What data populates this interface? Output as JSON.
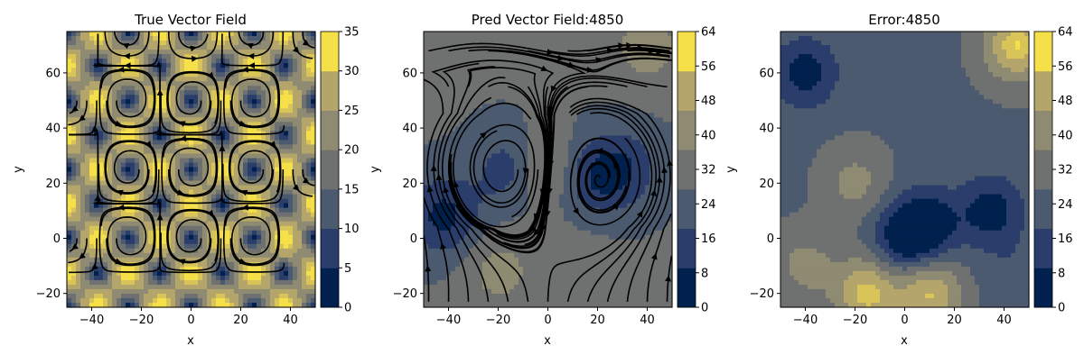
{
  "chart_data": [
    {
      "type": "heatmap",
      "title": "True Vector Field",
      "xlabel": "x",
      "ylabel": "y",
      "xlim": [
        -50,
        50
      ],
      "ylim": [
        -25,
        75
      ],
      "xticks": [
        -40,
        -20,
        0,
        20,
        40
      ],
      "yticks": [
        -20,
        0,
        20,
        40,
        60
      ],
      "colorbar": {
        "min": 0,
        "max": 35,
        "ticks": [
          0,
          5,
          10,
          15,
          20,
          25,
          30,
          35
        ]
      },
      "overlay": "streamlines",
      "field": "|(cos(kx)·sin(ky), −sin(kx)·cos(ky))| · 35, period 50 in x and y",
      "cell_centers": [
        {
          "x": -25,
          "y": 25,
          "value": 2
        },
        {
          "x": 25,
          "y": 25,
          "value": 2
        },
        {
          "x": -25,
          "y": -25,
          "value": 2
        },
        {
          "x": 25,
          "y": -25,
          "value": 2
        },
        {
          "x": -25,
          "y": 75,
          "value": 2
        },
        {
          "x": 25,
          "y": 75,
          "value": 2
        },
        {
          "x": 0,
          "y": 0,
          "value": 2
        },
        {
          "x": 0,
          "y": 50,
          "value": 2
        },
        {
          "x": -50,
          "y": 0,
          "value": 2
        },
        {
          "x": 50,
          "y": 50,
          "value": 2
        }
      ]
    },
    {
      "type": "heatmap",
      "title": "Pred Vector Field:4850",
      "xlabel": "x",
      "ylabel": "y",
      "xlim": [
        -50,
        50
      ],
      "ylim": [
        -25,
        75
      ],
      "xticks": [
        -40,
        -20,
        0,
        20,
        40
      ],
      "yticks": [
        -20,
        0,
        20,
        40,
        60
      ],
      "colorbar": {
        "min": 0,
        "max": 64,
        "ticks": [
          0,
          8,
          16,
          24,
          32,
          40,
          48,
          56,
          64
        ]
      },
      "overlay": "streamlines",
      "regions": [
        {
          "x": -15,
          "y": 25,
          "value": 12
        },
        {
          "x": 15,
          "y": 22,
          "value": 12
        },
        {
          "x": 30,
          "y": 25,
          "value": 10
        },
        {
          "x": -42,
          "y": 8,
          "value": 6
        },
        {
          "x": 0,
          "y": 25,
          "value": 45
        },
        {
          "x": -20,
          "y": -12,
          "value": 40
        },
        {
          "x": 10,
          "y": -12,
          "value": 35
        },
        {
          "x": 40,
          "y": 70,
          "value": 42
        }
      ]
    },
    {
      "type": "heatmap",
      "title": "Error:4850",
      "xlabel": "x",
      "ylabel": "y",
      "xlim": [
        -50,
        50
      ],
      "ylim": [
        -25,
        75
      ],
      "xticks": [
        -40,
        -20,
        0,
        20,
        40
      ],
      "yticks": [
        -20,
        0,
        20,
        40,
        60
      ],
      "colorbar": {
        "min": 0,
        "max": 64,
        "ticks": [
          0,
          8,
          16,
          24,
          32,
          40,
          48,
          56,
          64
        ]
      },
      "regions": [
        {
          "x": -15,
          "y": -20,
          "value": 58
        },
        {
          "x": 10,
          "y": -20,
          "value": 56
        },
        {
          "x": -40,
          "y": -10,
          "value": 40
        },
        {
          "x": 45,
          "y": -12,
          "value": 20
        },
        {
          "x": -20,
          "y": 20,
          "value": 40
        },
        {
          "x": -40,
          "y": 60,
          "value": 4
        },
        {
          "x": 10,
          "y": 5,
          "value": 4
        },
        {
          "x": 35,
          "y": 10,
          "value": 4
        },
        {
          "x": 45,
          "y": 70,
          "value": 60
        },
        {
          "x": 0,
          "y": 0,
          "value": 2
        }
      ]
    }
  ],
  "panels_text": {
    "p1": {
      "title": "True Vector Field",
      "xlabel": "x",
      "ylabel": "y"
    },
    "p2": {
      "title": "Pred Vector Field:4850",
      "xlabel": "x",
      "ylabel": "y"
    },
    "p3": {
      "title": "Error:4850",
      "xlabel": "x",
      "ylabel": "y"
    }
  },
  "colormap": [
    "#00204d",
    "#2a3d6b",
    "#4b5a6e",
    "#6e7170",
    "#8f8b72",
    "#b4a66a",
    "#d8c458",
    "#f5e04a"
  ]
}
